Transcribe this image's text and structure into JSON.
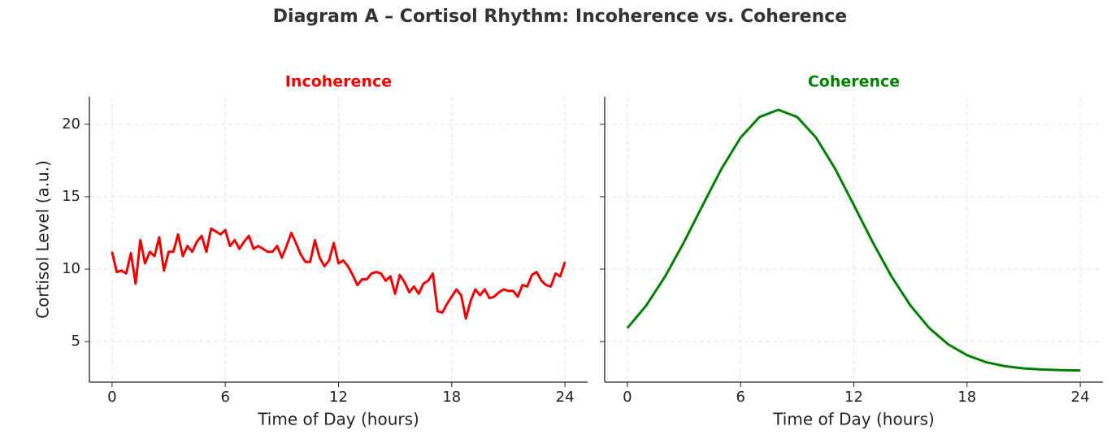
{
  "title": "Diagram A – Cortisol Rhythm: Incoherence vs. Coherence",
  "chart_data": [
    {
      "type": "line",
      "title": "Incoherence",
      "title_color": "#ee0000",
      "xlabel": "Time of Day (hours)",
      "ylabel": "Cortisol Level (a.u.)",
      "x": [
        0,
        0.25,
        0.5,
        0.75,
        1,
        1.25,
        1.5,
        1.75,
        2,
        2.25,
        2.5,
        2.75,
        3,
        3.25,
        3.5,
        3.75,
        4,
        4.25,
        4.5,
        4.75,
        5,
        5.25,
        5.5,
        5.75,
        6,
        6.25,
        6.5,
        6.75,
        7,
        7.25,
        7.5,
        7.75,
        8,
        8.25,
        8.5,
        8.75,
        9,
        9.25,
        9.5,
        9.75,
        10,
        10.25,
        10.5,
        10.75,
        11,
        11.25,
        11.5,
        11.75,
        12,
        12.25,
        12.5,
        12.75,
        13,
        13.25,
        13.5,
        13.75,
        14,
        14.25,
        14.5,
        14.75,
        15,
        15.25,
        15.5,
        15.75,
        16,
        16.25,
        16.5,
        16.75,
        17,
        17.25,
        17.5,
        17.75,
        18,
        18.25,
        18.5,
        18.75,
        19,
        19.25,
        19.5,
        19.75,
        20,
        20.25,
        20.5,
        20.75,
        21,
        21.25,
        21.5,
        21.75,
        22,
        22.25,
        22.5,
        22.75,
        23,
        23.25,
        23.5,
        23.75,
        24
      ],
      "series": [
        {
          "name": "Incoherence",
          "color": "#ee0000",
          "values": [
            11.2,
            9.8,
            9.9,
            9.7,
            11.1,
            9.0,
            12.0,
            10.4,
            11.2,
            10.9,
            12.2,
            9.9,
            11.2,
            11.2,
            12.4,
            10.9,
            11.6,
            11.2,
            11.9,
            12.3,
            11.2,
            12.8,
            12.6,
            12.4,
            12.7,
            11.6,
            12.0,
            11.4,
            11.9,
            12.3,
            11.4,
            11.6,
            11.4,
            11.2,
            11.2,
            11.6,
            10.8,
            11.6,
            12.5,
            11.8,
            11.0,
            10.5,
            10.5,
            12.0,
            10.8,
            10.2,
            10.6,
            11.8,
            10.4,
            10.6,
            10.2,
            9.6,
            8.9,
            9.3,
            9.3,
            9.7,
            9.8,
            9.7,
            9.2,
            9.5,
            8.3,
            9.6,
            9.1,
            8.4,
            8.8,
            8.3,
            9.0,
            9.2,
            9.7,
            7.1,
            7.0,
            7.6,
            8.1,
            8.6,
            8.2,
            6.6,
            7.8,
            8.6,
            8.2,
            8.6,
            8.0,
            8.1,
            8.4,
            8.6,
            8.5,
            8.5,
            8.1,
            8.9,
            8.8,
            9.6,
            9.8,
            9.2,
            8.9,
            8.8,
            9.7,
            9.5,
            10.5
          ]
        }
      ],
      "xlim": [
        -1.2,
        25.2
      ],
      "ylim": [
        2.2,
        21.9
      ],
      "xticks": [
        0,
        6,
        12,
        18,
        24
      ],
      "yticks": [
        5,
        10,
        15,
        20
      ],
      "grid": true
    },
    {
      "type": "line",
      "title": "Coherence",
      "title_color": "#008000",
      "xlabel": "Time of Day (hours)",
      "sharey": true,
      "x": [
        0,
        1,
        2,
        3,
        4,
        5,
        6,
        7,
        8,
        9,
        10,
        11,
        12,
        13,
        14,
        15,
        16,
        17,
        18,
        19,
        20,
        21,
        22,
        23,
        24
      ],
      "series": [
        {
          "name": "Coherence",
          "color": "#008000",
          "values": [
            5.93,
            7.49,
            9.49,
            11.86,
            14.43,
            16.95,
            19.08,
            20.5,
            21,
            20.5,
            19.08,
            16.95,
            14.43,
            11.86,
            9.49,
            7.49,
            5.93,
            4.81,
            4.06,
            3.58,
            3.3,
            3.15,
            3.07,
            3.03,
            3.01
          ]
        }
      ],
      "xlim": [
        -1.2,
        25.2
      ],
      "ylim": [
        2.2,
        21.9
      ],
      "xticks": [
        0,
        6,
        12,
        18,
        24
      ],
      "grid": true
    }
  ]
}
